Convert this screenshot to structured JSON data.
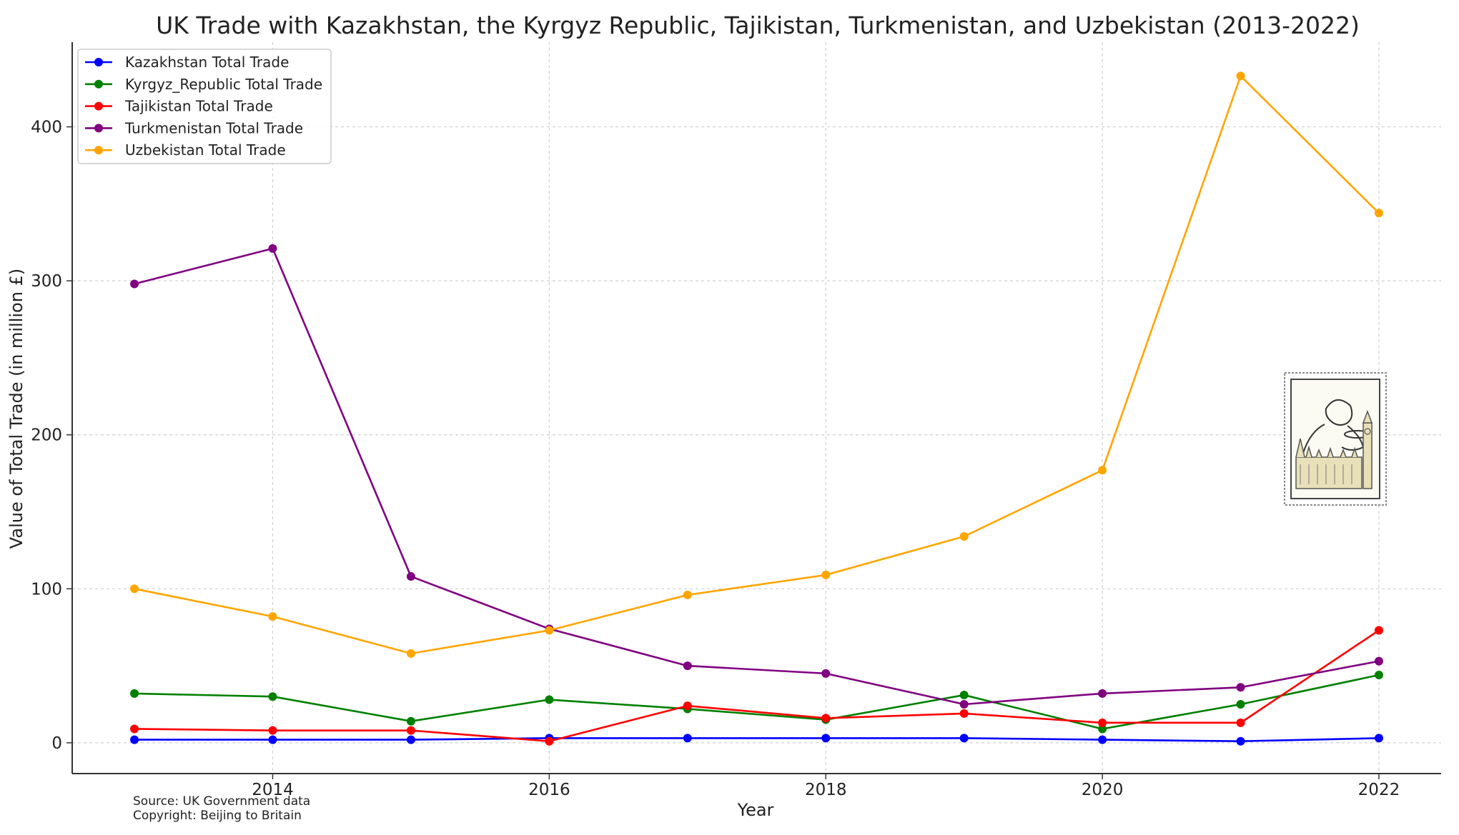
{
  "chart_data": {
    "type": "line",
    "title": "UK Trade with Kazakhstan, the Kyrgyz Republic, Tajikistan, Turkmenistan, and Uzbekistan (2013-2022)",
    "xlabel": "Year",
    "ylabel": "Value of Total Trade (in million £)",
    "x": [
      2013,
      2014,
      2015,
      2016,
      2017,
      2018,
      2019,
      2020,
      2021,
      2022
    ],
    "xlim": [
      2012.55,
      2022.45
    ],
    "ylim": [
      -20,
      455
    ],
    "x_ticks": [
      2014,
      2016,
      2018,
      2020,
      2022
    ],
    "y_ticks": [
      0,
      100,
      200,
      300,
      400
    ],
    "grid": true,
    "legend_position": "top-left",
    "series": [
      {
        "name": "Kazakhstan Total Trade",
        "color": "#0000ff",
        "values": [
          2,
          2,
          2,
          3,
          3,
          3,
          3,
          2,
          1,
          3
        ]
      },
      {
        "name": "Kyrgyz_Republic Total Trade",
        "color": "#008000",
        "values": [
          32,
          30,
          14,
          28,
          22,
          15,
          31,
          9,
          25,
          44
        ]
      },
      {
        "name": "Tajikistan Total Trade",
        "color": "#ff0000",
        "values": [
          9,
          8,
          8,
          1,
          24,
          16,
          19,
          13,
          13,
          73
        ]
      },
      {
        "name": "Turkmenistan Total Trade",
        "color": "#800080",
        "values": [
          298,
          321,
          108,
          74,
          50,
          45,
          25,
          32,
          36,
          53
        ]
      },
      {
        "name": "Uzbekistan Total Trade",
        "color": "#ffa500",
        "values": [
          100,
          82,
          58,
          73,
          96,
          109,
          134,
          177,
          433,
          344
        ]
      }
    ],
    "annotations": [
      "Source: UK Government data",
      "Copyright: Beijing to Britain"
    ]
  },
  "stamp": {
    "icon": "postage-stamp-big-ben-icon"
  }
}
